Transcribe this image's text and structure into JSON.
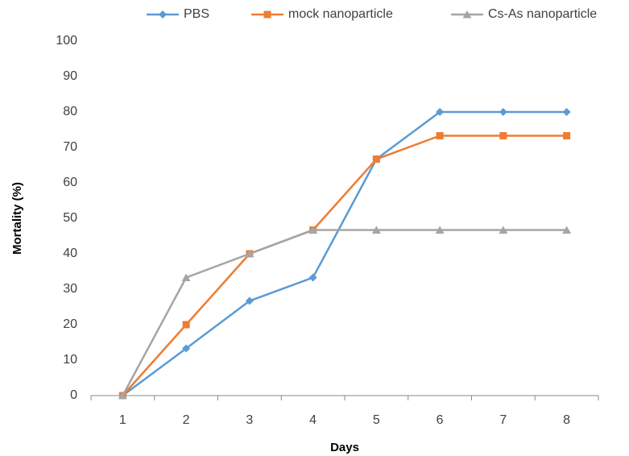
{
  "chart_data": {
    "type": "line",
    "x_label": "Days",
    "y_label": "Mortality (%)",
    "categories": [
      "1",
      "2",
      "3",
      "4",
      "5",
      "6",
      "7",
      "8"
    ],
    "series": [
      {
        "name": "PBS",
        "color": "#5b9bd5",
        "marker": "diamond",
        "values": [
          0,
          13.3,
          26.7,
          33.3,
          66.7,
          80,
          80,
          80
        ]
      },
      {
        "name": "mock nanoparticle",
        "color": "#ed7d31",
        "marker": "square",
        "values": [
          0,
          20,
          40,
          46.7,
          66.7,
          73.3,
          73.3,
          73.3
        ]
      },
      {
        "name": "Cs-As nanoparticle",
        "color": "#a5a5a5",
        "marker": "triangle",
        "values": [
          0,
          33.3,
          40,
          46.7,
          46.7,
          46.7,
          46.7,
          46.7
        ]
      }
    ],
    "ylim": [
      0,
      100
    ],
    "yticks": [
      0,
      10,
      20,
      30,
      40,
      50,
      60,
      70,
      80,
      90,
      100
    ],
    "grid": false,
    "legend": "top"
  }
}
